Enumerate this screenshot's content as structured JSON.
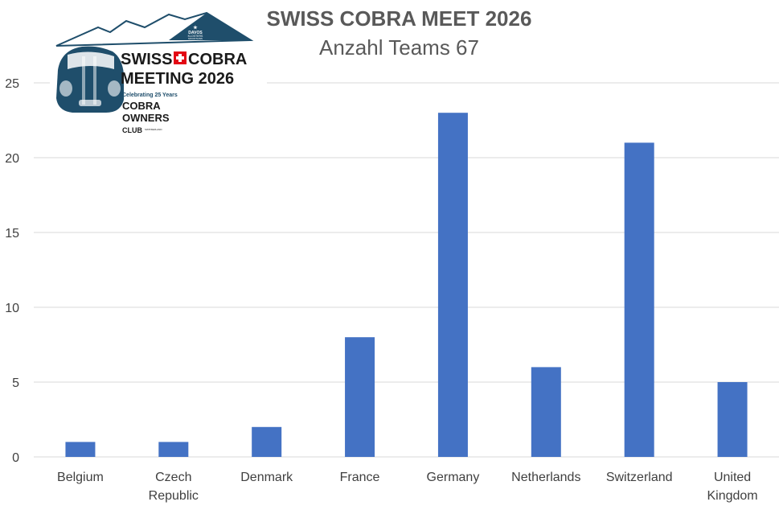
{
  "logo": {
    "line1a": "SWISS",
    "line1b": "COBRA",
    "line2": "MEETING 2026",
    "tagline": "Celebrating 25 Years",
    "club1": "COBRA",
    "club2": "OWNERS",
    "club3": "CLUB",
    "club3b": "SWITZERLAND",
    "badge1": "DAVOS",
    "badge2": "KLOSTERS",
    "badge3": "MOUNTAINS",
    "colors": {
      "navy": "#1f4e6b",
      "red": "#e30613"
    }
  },
  "chart_data": {
    "type": "bar",
    "title": "SWISS COBRA MEET 2026",
    "subtitle": "Anzahl Teams 67",
    "categories": [
      [
        "Belgium"
      ],
      [
        "Czech",
        "Republic"
      ],
      [
        "Denmark"
      ],
      [
        "France"
      ],
      [
        "Germany"
      ],
      [
        "Netherlands"
      ],
      [
        "Switzerland"
      ],
      [
        "United",
        "Kingdom"
      ]
    ],
    "values": [
      1,
      1,
      2,
      8,
      23,
      6,
      21,
      5
    ],
    "ylim": [
      0,
      25
    ],
    "yticks": [
      0,
      5,
      10,
      15,
      20,
      25
    ],
    "grid": true,
    "bar_color": "#4472c4"
  }
}
